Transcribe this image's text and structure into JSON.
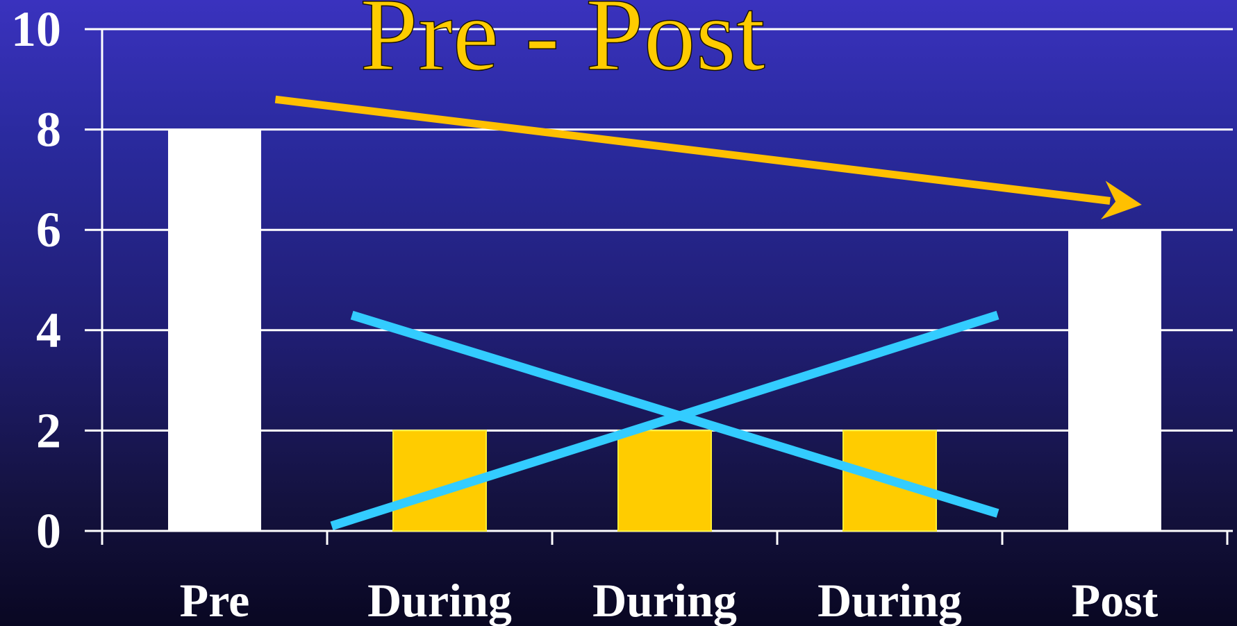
{
  "chart_data": {
    "type": "bar",
    "title": "Pre - Post",
    "xlabel": "",
    "ylabel": "",
    "categories": [
      "Pre",
      "During",
      "During",
      "During",
      "Post"
    ],
    "values": [
      8,
      2,
      2,
      2,
      6
    ],
    "ylim": [
      0,
      10
    ],
    "yticks": [
      "0",
      "2",
      "4",
      "6",
      "8",
      "10"
    ],
    "grid": true,
    "legend": "none",
    "colors": {
      "background_top": "#3a32be",
      "background_bottom": "#090722",
      "bars": [
        "#ffffff",
        "#ffcc00",
        "#ffcc00",
        "#ffcc00",
        "#ffffff"
      ],
      "bar_border": "#ffee33",
      "grid": "#ffffff",
      "title": "#ffcc00",
      "trend_arrow": "#ffc000",
      "cross_lines": "#33ccff"
    },
    "annotations": {
      "trend_arrow": {
        "description": "arrow from Pre down to Post",
        "from": {
          "x": 0.27,
          "y": 8.6
        },
        "to": {
          "x": 4.12,
          "y": 6.5
        }
      },
      "cross_lines": [
        {
          "from": {
            "x": 0.61,
            "y": 4.3
          },
          "to": {
            "x": 3.48,
            "y": 0.35
          }
        },
        {
          "from": {
            "x": 0.52,
            "y": 0.1
          },
          "to": {
            "x": 3.48,
            "y": 4.3
          }
        }
      ]
    }
  }
}
